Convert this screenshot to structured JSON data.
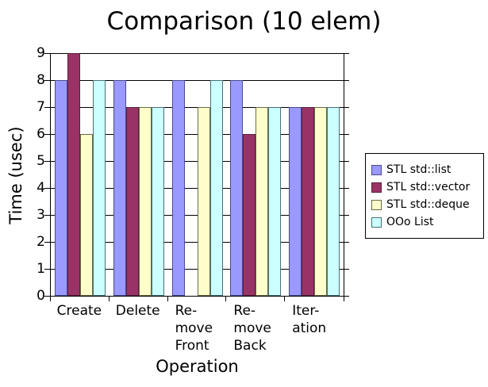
{
  "chart_data": {
    "type": "bar",
    "title": "Comparison (10 elem)",
    "xlabel": "Operation",
    "ylabel": "Time (usec)",
    "ylim": [
      0,
      9
    ],
    "ytick_interval": 1,
    "yticks": [
      0,
      1,
      2,
      3,
      4,
      5,
      6,
      7,
      8,
      9
    ],
    "grid": true,
    "legend_position": "right",
    "categories": [
      {
        "id": "create",
        "label": "Create",
        "lines": [
          "Create"
        ]
      },
      {
        "id": "delete",
        "label": "Delete",
        "lines": [
          "Delete"
        ]
      },
      {
        "id": "remove-front",
        "label": "Remove Front",
        "lines": [
          "Re-",
          "move",
          "Front"
        ]
      },
      {
        "id": "remove-back",
        "label": "Remove Back",
        "lines": [
          "Re-",
          "move",
          "Back"
        ]
      },
      {
        "id": "iteration",
        "label": "Iteration",
        "lines": [
          "Iter-",
          "ation"
        ]
      }
    ],
    "series": [
      {
        "name": "STL std::list",
        "color": "#9999FF",
        "border_color": "#4a4a8f",
        "values": [
          8,
          8,
          8,
          8,
          7
        ]
      },
      {
        "name": "STL std::vector",
        "color": "#993366",
        "border_color": "#5c1f3d",
        "values": [
          9,
          7,
          0,
          6,
          7
        ]
      },
      {
        "name": "STL std::deque",
        "color": "#FFFFCC",
        "border_color": "#6b6b47",
        "values": [
          6,
          7,
          7,
          7,
          7
        ]
      },
      {
        "name": "OOo List",
        "color": "#CCFFFF",
        "border_color": "#47707a",
        "values": [
          8,
          7,
          8,
          7,
          7
        ]
      }
    ]
  }
}
